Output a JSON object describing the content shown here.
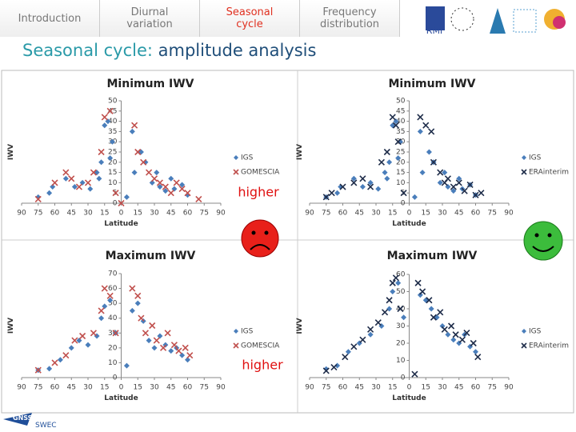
{
  "nav": {
    "tabs": [
      "Introduction",
      "Diurnal variation",
      "Seasonal cycle",
      "Frequency distribution"
    ],
    "active": 2
  },
  "logo_text": "RMI",
  "heading": {
    "prefix": "Seasonal cycle:",
    "text": "amplitude analysis"
  },
  "annotations": [
    "higher",
    "higher"
  ],
  "footer_logo": {
    "text1": "GNSS 4",
    "text2": "SWEC"
  },
  "chart_data": [
    {
      "type": "scatter",
      "title": "Minimum IWV",
      "xlabel": "Latitude",
      "ylabel": "IWV",
      "legend": "right",
      "xlim": [
        -90,
        90
      ],
      "xticks": [
        {
          "value": -90,
          "label": "90"
        },
        {
          "value": -75,
          "label": "75"
        },
        {
          "value": -60,
          "label": "60"
        },
        {
          "value": -45,
          "label": "45"
        },
        {
          "value": -30,
          "label": "30"
        },
        {
          "value": -15,
          "label": "15"
        },
        0,
        15,
        30,
        45,
        60,
        75,
        90
      ],
      "ylim": [
        0,
        50
      ],
      "yticks": [
        0,
        5,
        10,
        15,
        20,
        25,
        30,
        35,
        40,
        45,
        50
      ],
      "series": [
        {
          "name": "IGS",
          "color": "#4a7ebb",
          "marker": "diamond",
          "x": [
            -75,
            -65,
            -62,
            -50,
            -42,
            -35,
            -28,
            -22,
            -20,
            -18,
            -15,
            -12,
            -10,
            -8,
            5,
            10,
            12,
            18,
            22,
            28,
            32,
            35,
            40,
            45,
            48,
            55,
            60
          ],
          "values": [
            3,
            5,
            8,
            12,
            8,
            10,
            7,
            15,
            12,
            20,
            38,
            40,
            22,
            30,
            3,
            35,
            15,
            25,
            20,
            10,
            15,
            8,
            6,
            12,
            7,
            9,
            4
          ]
        },
        {
          "name": "GOMESCIA",
          "color": "#c0504d",
          "marker": "x",
          "x": [
            -75,
            -60,
            -50,
            -45,
            -38,
            -30,
            -25,
            -18,
            -15,
            -10,
            -5,
            0,
            12,
            15,
            20,
            25,
            30,
            35,
            40,
            45,
            50,
            55,
            60,
            70
          ],
          "values": [
            2,
            10,
            15,
            12,
            8,
            10,
            15,
            25,
            42,
            45,
            5,
            0,
            38,
            25,
            20,
            15,
            12,
            10,
            8,
            5,
            10,
            7,
            5,
            2
          ]
        }
      ]
    },
    {
      "type": "scatter",
      "title": "Minimum IWV",
      "xlabel": "Latitude",
      "ylabel": "IWV",
      "legend": "right",
      "xlim": [
        -90,
        90
      ],
      "xticks": [
        {
          "value": -90,
          "label": "90"
        },
        {
          "value": -75,
          "label": "75"
        },
        {
          "value": -60,
          "label": "60"
        },
        {
          "value": -45,
          "label": "45"
        },
        {
          "value": -30,
          "label": "30"
        },
        {
          "value": -15,
          "label": "15"
        },
        0,
        15,
        30,
        45,
        60,
        75,
        90
      ],
      "ylim": [
        0,
        50
      ],
      "yticks": [
        0,
        5,
        10,
        15,
        20,
        25,
        30,
        35,
        40,
        45,
        50
      ],
      "series": [
        {
          "name": "IGS",
          "color": "#4a7ebb",
          "marker": "diamond",
          "x": [
            -75,
            -65,
            -62,
            -50,
            -42,
            -35,
            -28,
            -22,
            -20,
            -18,
            -15,
            -12,
            -10,
            -8,
            5,
            10,
            12,
            18,
            22,
            28,
            32,
            35,
            40,
            45,
            48,
            55,
            60
          ],
          "values": [
            3,
            5,
            8,
            12,
            8,
            10,
            7,
            15,
            12,
            20,
            38,
            40,
            22,
            30,
            3,
            35,
            15,
            25,
            20,
            10,
            15,
            8,
            6,
            12,
            7,
            9,
            4
          ]
        },
        {
          "name": "ERAinterim",
          "color": "#1f2d4a",
          "marker": "x",
          "x": [
            -75,
            -70,
            -60,
            -50,
            -42,
            -35,
            -25,
            -20,
            -15,
            -12,
            -10,
            -5,
            10,
            15,
            20,
            22,
            28,
            32,
            35,
            40,
            45,
            50,
            55,
            60,
            65
          ],
          "values": [
            3,
            5,
            8,
            10,
            12,
            8,
            20,
            25,
            42,
            38,
            30,
            5,
            42,
            38,
            35,
            20,
            15,
            10,
            12,
            8,
            10,
            6,
            9,
            4,
            5
          ]
        }
      ]
    },
    {
      "type": "scatter",
      "title": "Maximum IWV",
      "xlabel": "Latitude",
      "ylabel": "IWV",
      "legend": "right",
      "xlim": [
        -90,
        90
      ],
      "xticks": [
        {
          "value": -90,
          "label": "90"
        },
        {
          "value": -75,
          "label": "75"
        },
        {
          "value": -60,
          "label": "60"
        },
        {
          "value": -45,
          "label": "45"
        },
        {
          "value": -30,
          "label": "30"
        },
        {
          "value": -15,
          "label": "15"
        },
        0,
        15,
        30,
        45,
        60,
        75,
        90
      ],
      "ylim": [
        0,
        70
      ],
      "yticks": [
        0,
        10,
        20,
        30,
        40,
        50,
        60,
        70
      ],
      "series": [
        {
          "name": "IGS",
          "color": "#4a7ebb",
          "marker": "diamond",
          "x": [
            -75,
            -65,
            -55,
            -45,
            -38,
            -30,
            -22,
            -18,
            -15,
            -10,
            -5,
            5,
            10,
            15,
            20,
            25,
            30,
            35,
            40,
            45,
            50,
            55,
            60
          ],
          "values": [
            5,
            6,
            12,
            20,
            25,
            22,
            28,
            40,
            48,
            52,
            30,
            8,
            45,
            50,
            38,
            25,
            20,
            28,
            22,
            18,
            20,
            15,
            12
          ]
        },
        {
          "name": "GOMESCIA",
          "color": "#c0504d",
          "marker": "x",
          "x": [
            -75,
            -60,
            -50,
            -42,
            -35,
            -25,
            -18,
            -15,
            -10,
            -5,
            10,
            15,
            18,
            22,
            28,
            32,
            38,
            42,
            48,
            52,
            58,
            62
          ],
          "values": [
            5,
            10,
            15,
            25,
            28,
            30,
            45,
            60,
            55,
            30,
            60,
            55,
            40,
            30,
            35,
            25,
            20,
            30,
            22,
            18,
            20,
            15
          ]
        }
      ]
    },
    {
      "type": "scatter",
      "title": "Maximum IWV",
      "xlabel": "Latitude",
      "ylabel": "IWV",
      "legend": "right",
      "xlim": [
        -90,
        90
      ],
      "xticks": [
        {
          "value": -90,
          "label": "90"
        },
        {
          "value": -75,
          "label": "75"
        },
        {
          "value": -60,
          "label": "60"
        },
        {
          "value": -45,
          "label": "45"
        },
        {
          "value": -30,
          "label": "30"
        },
        {
          "value": -15,
          "label": "15"
        },
        0,
        15,
        30,
        45,
        60,
        75,
        90
      ],
      "ylim": [
        0,
        60
      ],
      "yticks": [
        0,
        10,
        20,
        30,
        40,
        50,
        60
      ],
      "series": [
        {
          "name": "IGS",
          "color": "#4a7ebb",
          "marker": "diamond",
          "x": [
            -75,
            -65,
            -55,
            -45,
            -35,
            -25,
            -18,
            -15,
            -10,
            -5,
            10,
            15,
            20,
            25,
            30,
            35,
            40,
            45,
            50,
            55,
            60
          ],
          "values": [
            5,
            7,
            15,
            20,
            25,
            30,
            40,
            50,
            55,
            35,
            48,
            45,
            40,
            35,
            30,
            25,
            22,
            20,
            25,
            18,
            15
          ]
        },
        {
          "name": "ERAinterim",
          "color": "#1f2d4a",
          "marker": "x",
          "x": [
            -75,
            -68,
            -58,
            -50,
            -42,
            -35,
            -28,
            -22,
            -18,
            -15,
            -12,
            -8,
            8,
            12,
            18,
            22,
            28,
            32,
            38,
            42,
            48,
            52,
            58,
            62,
            5
          ],
          "values": [
            4,
            6,
            12,
            18,
            22,
            28,
            32,
            38,
            45,
            55,
            58,
            40,
            55,
            50,
            45,
            35,
            38,
            28,
            30,
            25,
            22,
            26,
            20,
            12,
            2
          ]
        }
      ]
    }
  ]
}
